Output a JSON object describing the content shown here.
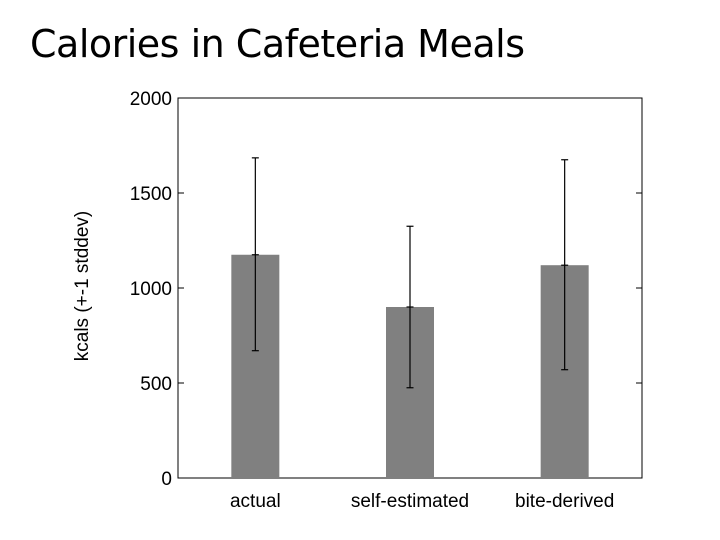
{
  "page": {
    "title": "Calories in Cafeteria Meals"
  },
  "chart_data": {
    "type": "bar",
    "title": "",
    "xlabel": "",
    "ylabel": "kcals (+-1 stddev)",
    "categories": [
      "actual",
      "self-estimated",
      "bite-derived"
    ],
    "values": [
      1175,
      900,
      1120
    ],
    "error": [
      {
        "low": 670,
        "high": 1685
      },
      {
        "low": 475,
        "high": 1325
      },
      {
        "low": 570,
        "high": 1675
      }
    ],
    "ylim": [
      0,
      2000
    ],
    "yticks": [
      0,
      500,
      1000,
      1500,
      2000
    ],
    "grid": false,
    "legend": "none",
    "colors": {
      "bar": "#808080",
      "axis": "#000000",
      "error": "#000000"
    }
  }
}
